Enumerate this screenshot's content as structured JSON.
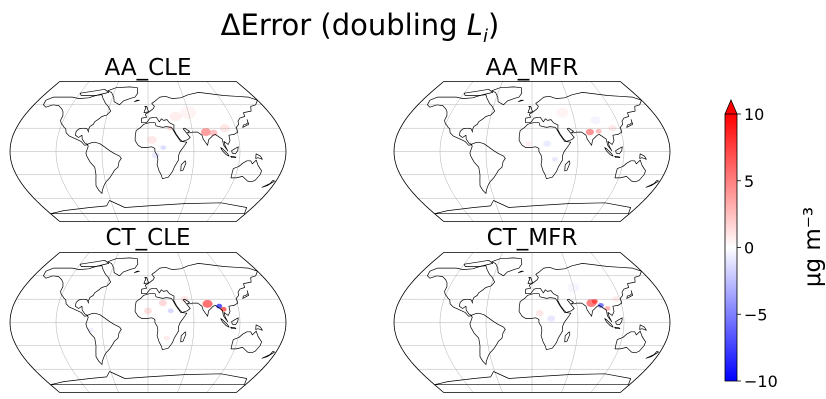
{
  "figure": {
    "title_prefix": "ΔError (doubling ",
    "title_var": "L",
    "title_sub": "i",
    "title_suffix": ")"
  },
  "panels": [
    {
      "label": "AA_CLE"
    },
    {
      "label": "AA_MFR"
    },
    {
      "label": "CT_CLE"
    },
    {
      "label": "CT_MFR"
    }
  ],
  "colorbar": {
    "label": "μg m⁻³",
    "ticks": [
      "10",
      "5",
      "0",
      "−5",
      "−10"
    ],
    "min": -10,
    "max": 10,
    "extend": "max",
    "colors": {
      "high": "#ff0000",
      "mid": "#ffffff",
      "low": "#0000ff"
    }
  }
}
